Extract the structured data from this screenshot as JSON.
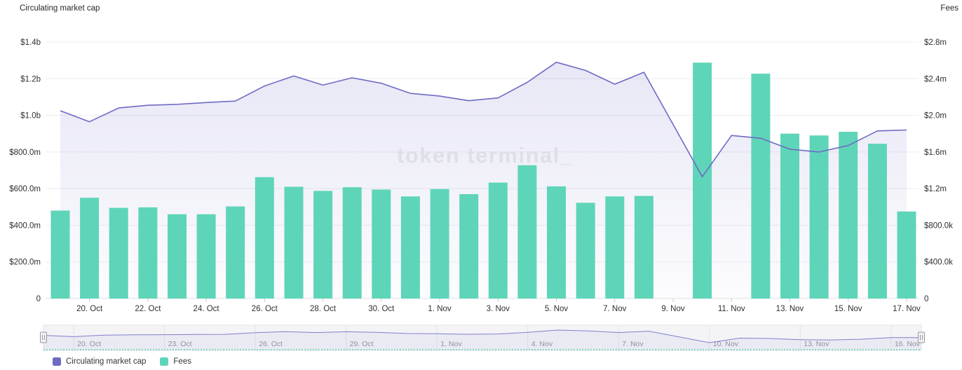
{
  "header": {
    "left_axis_title": "Circulating market cap",
    "right_axis_title": "Fees"
  },
  "watermark": "token terminal_",
  "colors": {
    "fees_bar": "#5ed5b8",
    "mcap_line": "#6e6bc4",
    "area_fill_top": "rgba(110,107,198,0.16)",
    "area_fill_bottom": "rgba(110,107,198,0.02)",
    "gridline": "#ededf1",
    "axis_line": "#e2e2e7",
    "tick_text": "#2e2f34",
    "nav_bg": "#f4f4f7",
    "nav_border": "#e3e3e8",
    "nav_label": "#94949c",
    "watermark_text": "#dfdfe9"
  },
  "chart_data": {
    "type": "combo",
    "title": "",
    "x": [
      "19. Oct",
      "20. Oct",
      "21. Oct",
      "22. Oct",
      "23. Oct",
      "24. Oct",
      "25. Oct",
      "26. Oct",
      "27. Oct",
      "28. Oct",
      "29. Oct",
      "30. Oct",
      "31. Oct",
      "1. Nov",
      "2. Nov",
      "3. Nov",
      "4. Nov",
      "5. Nov",
      "6. Nov",
      "7. Nov",
      "8. Nov",
      "9. Nov",
      "10. Nov",
      "11. Nov",
      "12. Nov",
      "13. Nov",
      "14. Nov",
      "15. Nov",
      "16. Nov",
      "17. Nov"
    ],
    "series": [
      {
        "name": "Circulating market cap",
        "type": "area-line",
        "axis": "left",
        "unit": "million USD",
        "values": [
          1025,
          965,
          1040,
          1055,
          1060,
          1070,
          1078,
          1160,
          1215,
          1165,
          1205,
          1175,
          1120,
          1105,
          1080,
          1095,
          1180,
          1290,
          1245,
          1170,
          1235,
          950,
          665,
          890,
          875,
          815,
          800,
          835,
          915,
          920
        ]
      },
      {
        "name": "Fees",
        "type": "bar",
        "axis": "right",
        "unit": "thousand USD",
        "values": [
          960,
          1100,
          990,
          995,
          920,
          920,
          1005,
          1325,
          1220,
          1175,
          1215,
          1190,
          1115,
          1195,
          1140,
          1265,
          1455,
          1225,
          1045,
          1115,
          1120,
          null,
          2575,
          null,
          2455,
          1800,
          1780,
          1820,
          1690,
          950
        ]
      }
    ],
    "left_axis": {
      "tick_labels": [
        "$1.4b",
        "$1.2b",
        "$1.0b",
        "$800.0m",
        "$600.0m",
        "$400.0m",
        "$200.0m",
        "0"
      ],
      "max_musd": 1400,
      "min": 0,
      "grid": true
    },
    "right_axis": {
      "tick_labels": [
        "$2.8m",
        "$2.4m",
        "$2.0m",
        "$1.6m",
        "$1.2m",
        "$800.0k",
        "$400.0k",
        "0"
      ],
      "max_kusd": 2800,
      "min": 0,
      "grid": true
    },
    "x_tick_labels": [
      "20. Oct",
      "22. Oct",
      "24. Oct",
      "26. Oct",
      "28. Oct",
      "30. Oct",
      "1. Nov",
      "3. Nov",
      "5. Nov",
      "7. Nov",
      "9. Nov",
      "11. Nov",
      "13. Nov",
      "15. Nov",
      "17. Nov"
    ],
    "legend_position": "bottom-left"
  },
  "navigator": {
    "labels": [
      "20. Oct",
      "23. Oct",
      "26. Oct",
      "29. Oct",
      "1. Nov",
      "4. Nov",
      "7. Nov",
      "10. Nov",
      "13. Nov",
      "16. Nov"
    ]
  },
  "legend": {
    "items": [
      {
        "label": "Circulating market cap",
        "color": "#6e6bc4"
      },
      {
        "label": "Fees",
        "color": "#5ed5b8"
      }
    ]
  }
}
